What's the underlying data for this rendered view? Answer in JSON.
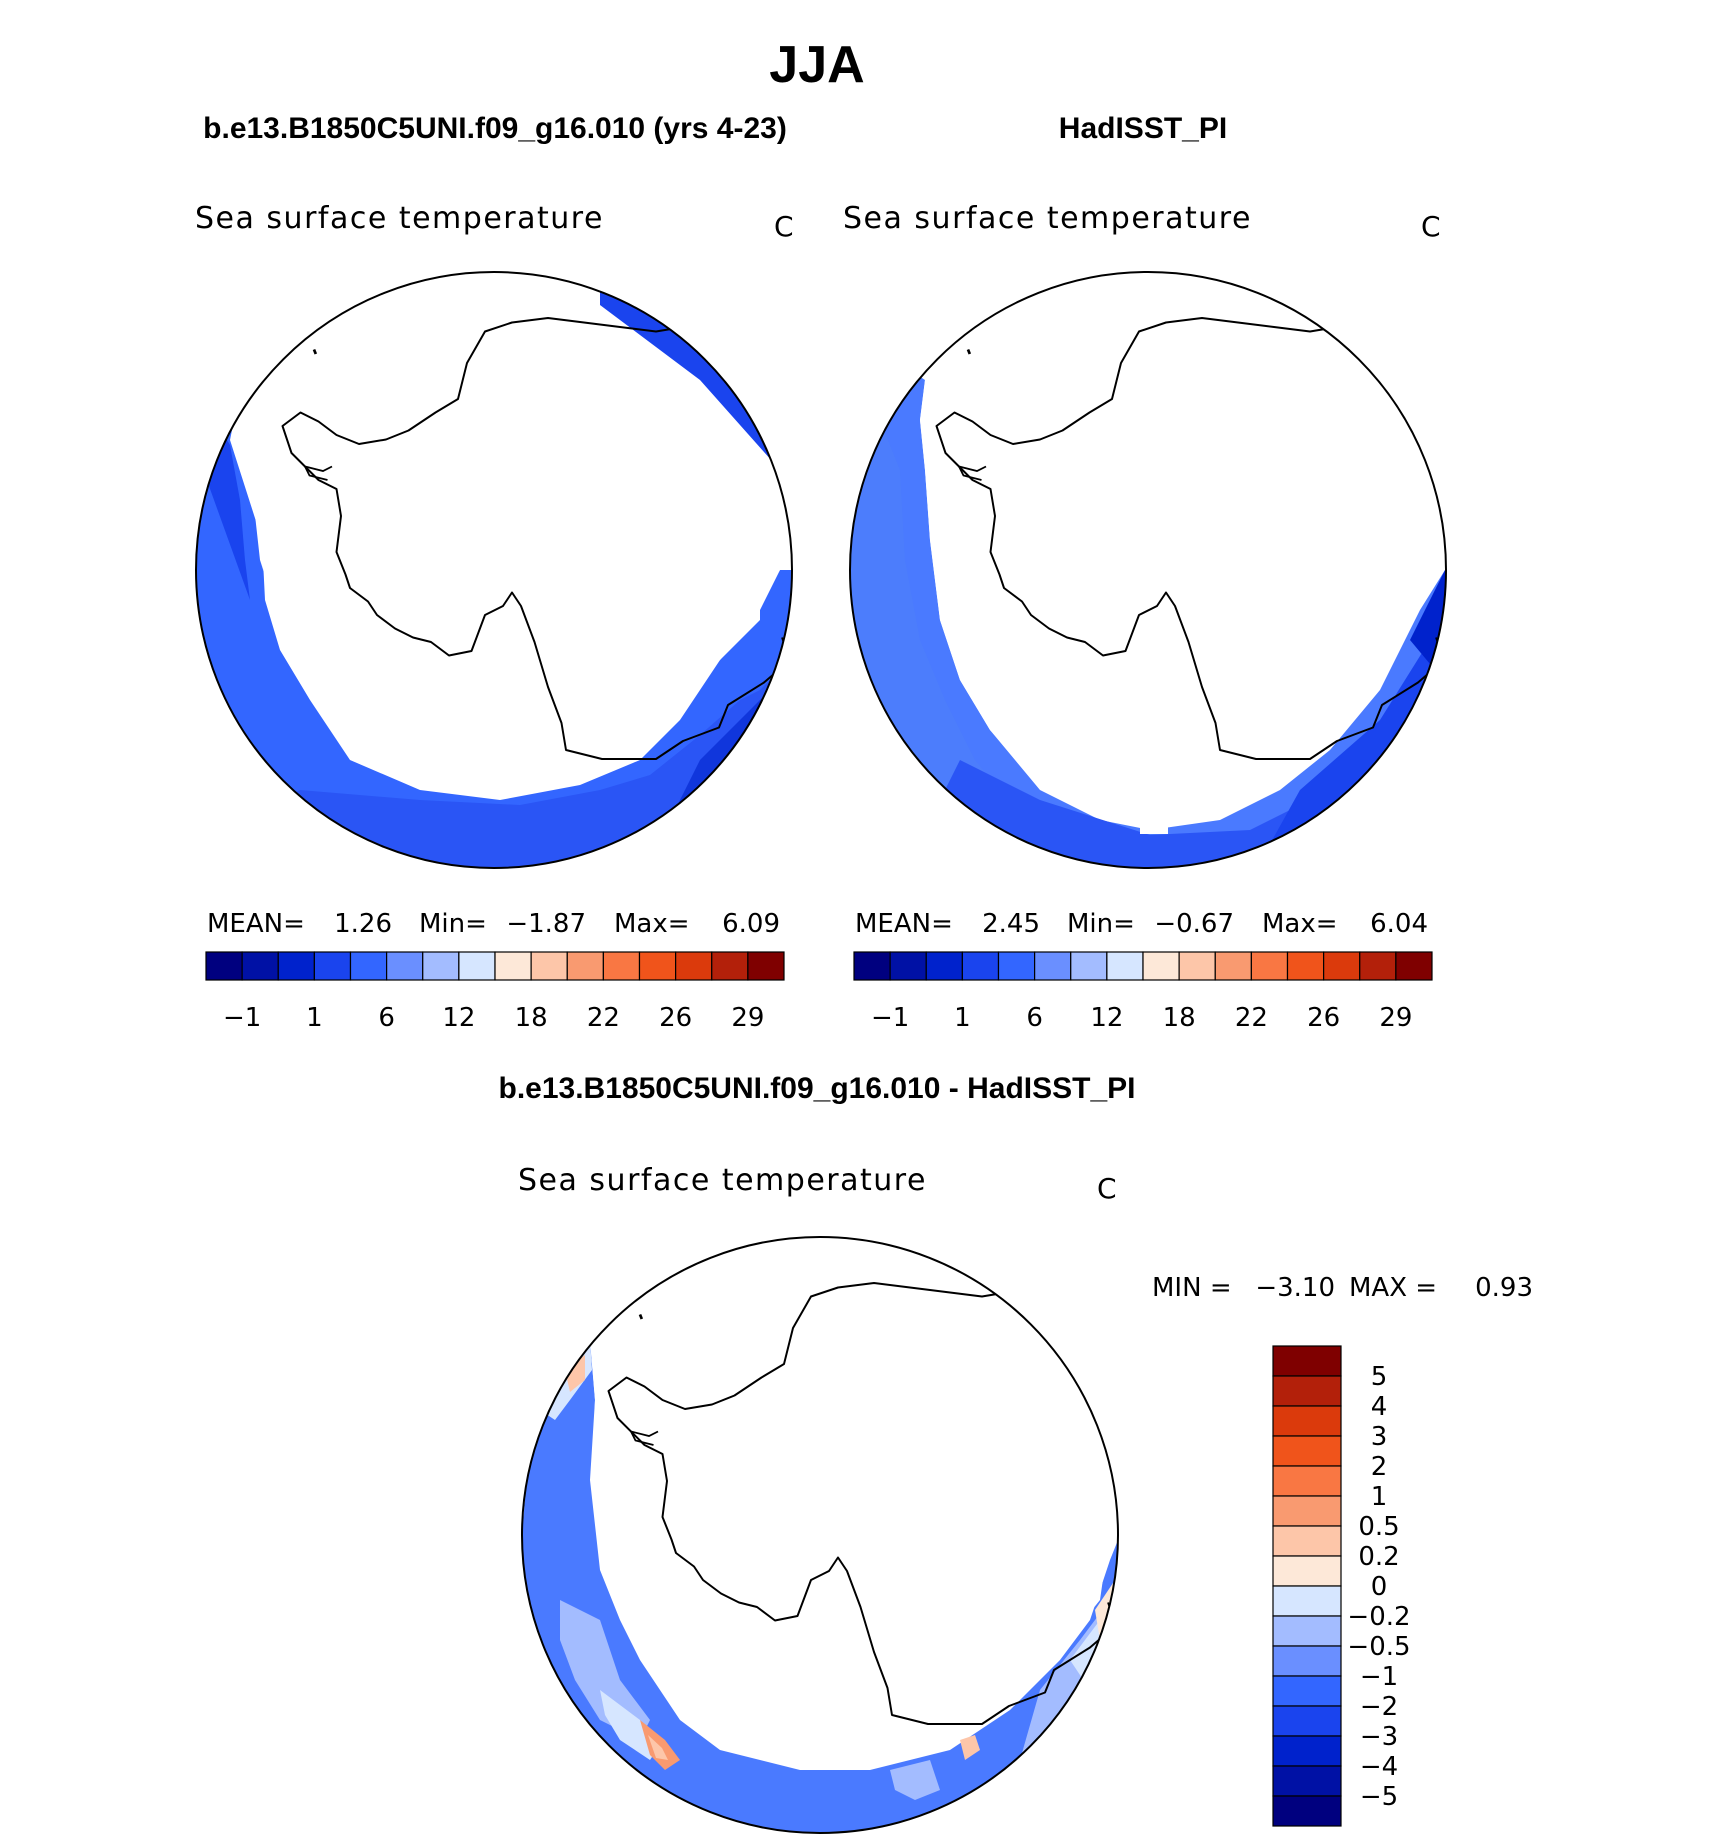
{
  "title": "JJA",
  "panels": [
    {
      "case": "b.e13.B1850C5UNI.f09_g16.010 (yrs 4-23)",
      "variable": "Sea surface temperature",
      "units": "C",
      "stats": {
        "mean_label": "MEAN=",
        "mean": "1.26",
        "min_label": "Min=",
        "min": "−1.87",
        "max_label": "Max=",
        "max": "6.09"
      }
    },
    {
      "case": "HadISST_PI",
      "variable": "Sea surface temperature",
      "units": "C",
      "stats": {
        "mean_label": "MEAN=",
        "mean": "2.45",
        "min_label": "Min=",
        "min": "−0.67",
        "max_label": "Max=",
        "max": "6.04"
      }
    }
  ],
  "colorbar_top": {
    "colors": [
      "#00007f",
      "#0011a5",
      "#0022cc",
      "#1a44ee",
      "#3366ff",
      "#6a8fff",
      "#a3bcff",
      "#d6e6ff",
      "#fde8d8",
      "#fdc6a9",
      "#f99a70",
      "#f97743",
      "#f0541b",
      "#db3a0c",
      "#b3200a",
      "#7f0000"
    ],
    "tick_labels": [
      "−1",
      "1",
      "6",
      "12",
      "18",
      "22",
      "26",
      "29"
    ]
  },
  "diff_panel": {
    "title": "b.e13.B1850C5UNI.f09_g16.010 - HadISST_PI",
    "variable": "Sea surface temperature",
    "units": "C",
    "stats": {
      "min_label": "MIN =",
      "min": "−3.10",
      "max_label": "MAX =",
      "max": "0.93"
    }
  },
  "colorbar_diff": {
    "colors_top_to_bottom": [
      "#7f0000",
      "#b3200a",
      "#db3a0c",
      "#f0541b",
      "#f97743",
      "#f99a70",
      "#fdc6a9",
      "#fde8d8",
      "#d6e6ff",
      "#a3bcff",
      "#6a8fff",
      "#3366ff",
      "#1a44ee",
      "#0022cc",
      "#0011a5",
      "#00007f"
    ],
    "tick_labels_top_to_bottom": [
      "5",
      "4",
      "3",
      "2",
      "1",
      "0.5",
      "0.2",
      "0",
      "−0.2",
      "−0.5",
      "−1",
      "−2",
      "−3",
      "−4",
      "−5"
    ]
  }
}
